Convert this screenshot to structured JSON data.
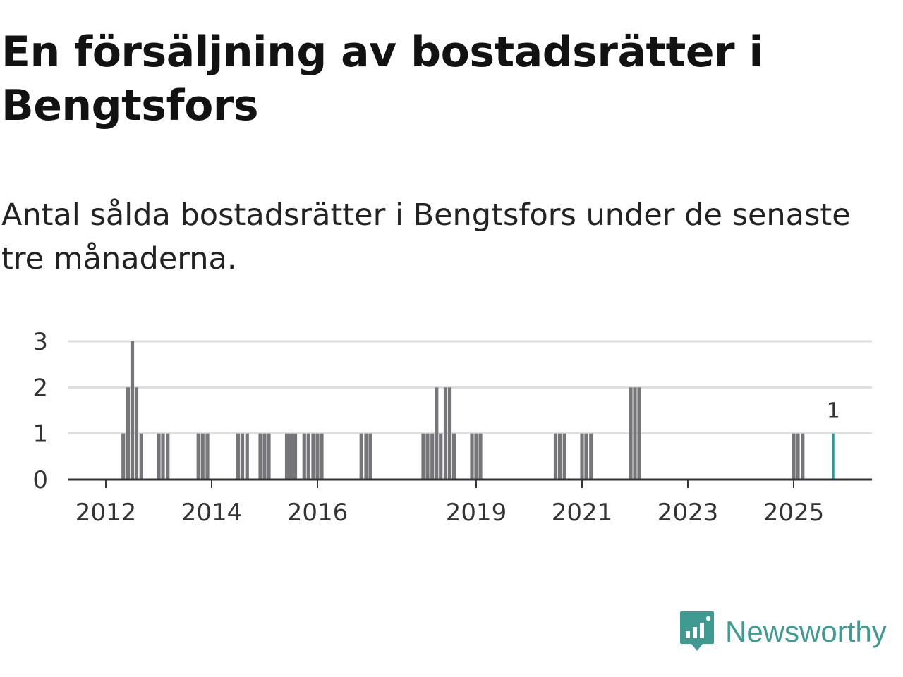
{
  "title": "En försäljning av bostadsrätter i Bengtsfors",
  "subtitle": "Antal sålda bostadsrätter i Bengtsfors under de senaste tre månaderna.",
  "brand": {
    "name": "Newsworthy",
    "color": "#3f9a91"
  },
  "colors": {
    "bar": "#76757a",
    "highlight": "#279c93",
    "grid": "#dddddd",
    "axis": "#333333"
  },
  "chart_data": {
    "type": "bar",
    "title": "En försäljning av bostadsrätter i Bengtsfors",
    "xlabel": "",
    "ylabel": "",
    "ylim": [
      0,
      3
    ],
    "yticks": [
      0,
      1,
      2,
      3
    ],
    "xlim": [
      2011.5,
      2026.25
    ],
    "xticks": [
      2012,
      2014,
      2016,
      2019,
      2021,
      2023,
      2025
    ],
    "xtick_labels": [
      "2012",
      "2014",
      "2016",
      "2019",
      "2021",
      "2023",
      "2025"
    ],
    "grid": true,
    "bars": [
      {
        "x": 2012.33,
        "value": 1
      },
      {
        "x": 2012.42,
        "value": 2
      },
      {
        "x": 2012.5,
        "value": 3
      },
      {
        "x": 2012.58,
        "value": 2
      },
      {
        "x": 2012.67,
        "value": 1
      },
      {
        "x": 2013.0,
        "value": 1
      },
      {
        "x": 2013.08,
        "value": 1
      },
      {
        "x": 2013.17,
        "value": 1
      },
      {
        "x": 2013.75,
        "value": 1
      },
      {
        "x": 2013.83,
        "value": 1
      },
      {
        "x": 2013.92,
        "value": 1
      },
      {
        "x": 2014.5,
        "value": 1
      },
      {
        "x": 2014.58,
        "value": 1
      },
      {
        "x": 2014.67,
        "value": 1
      },
      {
        "x": 2014.92,
        "value": 1
      },
      {
        "x": 2015.0,
        "value": 1
      },
      {
        "x": 2015.08,
        "value": 1
      },
      {
        "x": 2015.42,
        "value": 1
      },
      {
        "x": 2015.5,
        "value": 1
      },
      {
        "x": 2015.58,
        "value": 1
      },
      {
        "x": 2015.75,
        "value": 1
      },
      {
        "x": 2015.83,
        "value": 1
      },
      {
        "x": 2015.92,
        "value": 1
      },
      {
        "x": 2016.0,
        "value": 1
      },
      {
        "x": 2016.08,
        "value": 1
      },
      {
        "x": 2016.83,
        "value": 1
      },
      {
        "x": 2016.92,
        "value": 1
      },
      {
        "x": 2017.0,
        "value": 1
      },
      {
        "x": 2018.0,
        "value": 1
      },
      {
        "x": 2018.08,
        "value": 1
      },
      {
        "x": 2018.17,
        "value": 1
      },
      {
        "x": 2018.25,
        "value": 2
      },
      {
        "x": 2018.33,
        "value": 1
      },
      {
        "x": 2018.42,
        "value": 2
      },
      {
        "x": 2018.5,
        "value": 2
      },
      {
        "x": 2018.58,
        "value": 1
      },
      {
        "x": 2018.92,
        "value": 1
      },
      {
        "x": 2019.0,
        "value": 1
      },
      {
        "x": 2019.08,
        "value": 1
      },
      {
        "x": 2020.5,
        "value": 1
      },
      {
        "x": 2020.58,
        "value": 1
      },
      {
        "x": 2020.67,
        "value": 1
      },
      {
        "x": 2021.0,
        "value": 1
      },
      {
        "x": 2021.08,
        "value": 1
      },
      {
        "x": 2021.17,
        "value": 1
      },
      {
        "x": 2021.92,
        "value": 2
      },
      {
        "x": 2022.0,
        "value": 2
      },
      {
        "x": 2022.08,
        "value": 2
      },
      {
        "x": 2025.0,
        "value": 1
      },
      {
        "x": 2025.08,
        "value": 1
      },
      {
        "x": 2025.17,
        "value": 1
      }
    ],
    "highlight": {
      "x": 2025.75,
      "value": 1,
      "label": "1"
    }
  }
}
